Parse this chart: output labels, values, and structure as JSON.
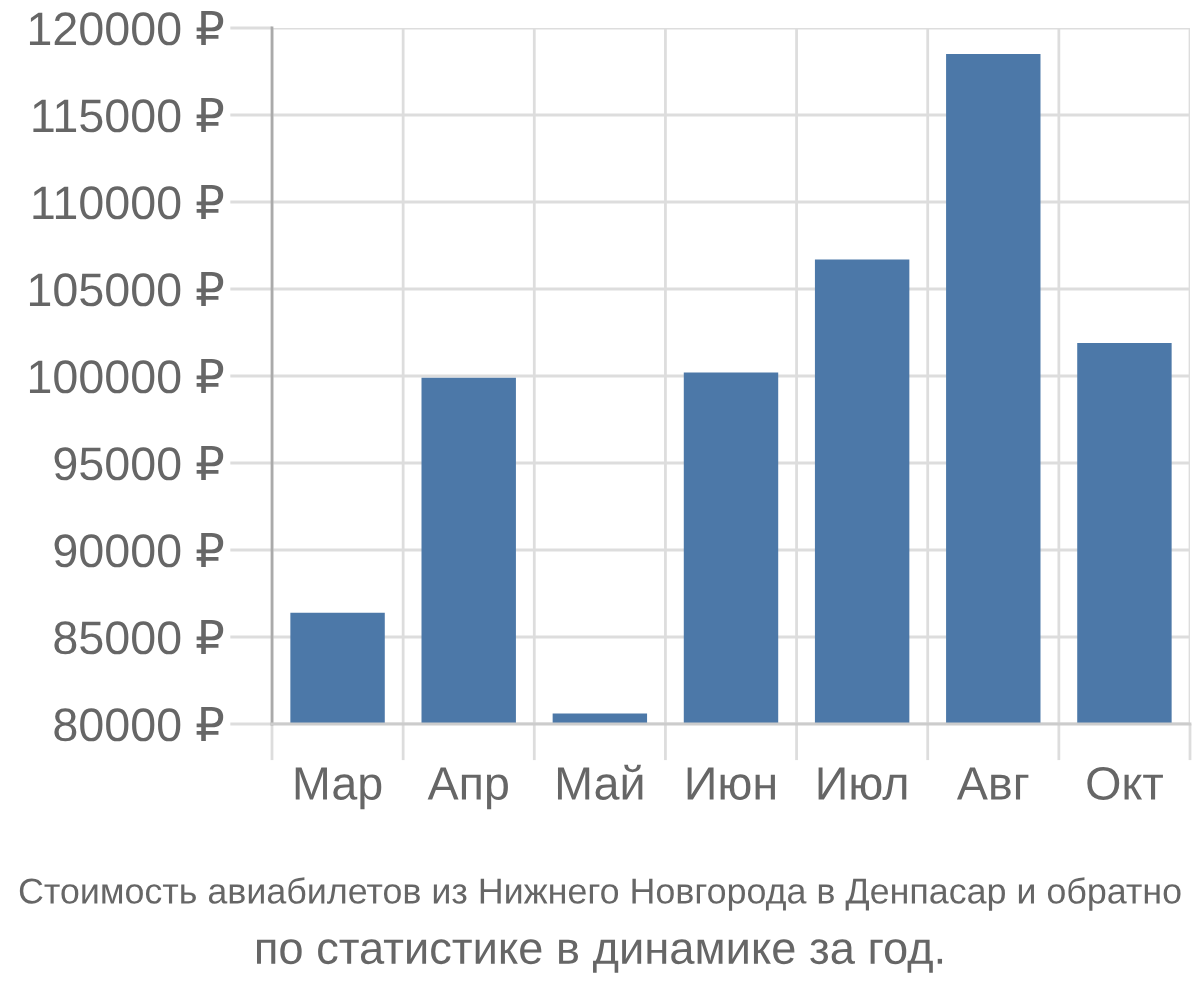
{
  "chart_data": {
    "type": "bar",
    "title": "Стоимость авиабилетов из Нижнего Новгорода в Денпасар и обратно",
    "subtitle": "по статистике в динамике за год.",
    "categories": [
      "Мар",
      "Апр",
      "Май",
      "Июн",
      "Июл",
      "Авг",
      "Окт"
    ],
    "values": [
      86400,
      99900,
      80600,
      100200,
      106700,
      118500,
      101900
    ],
    "color": "#4c78a8",
    "ylim": [
      80000,
      120000
    ],
    "yticks": [
      {
        "value": 80000,
        "label": "80000 ₽"
      },
      {
        "value": 85000,
        "label": "85000 ₽"
      },
      {
        "value": 90000,
        "label": "90000 ₽"
      },
      {
        "value": 95000,
        "label": "95000 ₽"
      },
      {
        "value": 100000,
        "label": "100000 ₽"
      },
      {
        "value": 105000,
        "label": "105000 ₽"
      },
      {
        "value": 110000,
        "label": "110000 ₽"
      },
      {
        "value": 115000,
        "label": "115000 ₽"
      },
      {
        "value": 120000,
        "label": "120000 ₽"
      }
    ],
    "grid": true
  }
}
